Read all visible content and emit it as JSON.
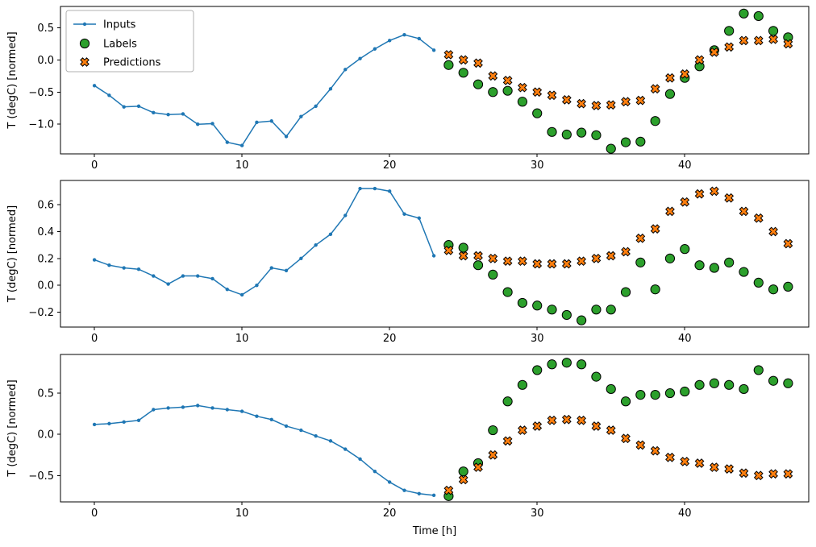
{
  "figure": {
    "background": "#ffffff",
    "xlabel": "Time [h]",
    "ylabel": "T (degC) [normed]"
  },
  "colors": {
    "inputs": "#1f77b4",
    "labels": "#2ca02c",
    "predictions": "#ff7f0e",
    "marker_edge": "#000000"
  },
  "legend": {
    "position": "upper-left",
    "items": [
      {
        "label": "Inputs",
        "type": "line-dot"
      },
      {
        "label": "Labels",
        "type": "circle"
      },
      {
        "label": "Predictions",
        "type": "x"
      }
    ]
  },
  "chart_data": [
    {
      "type": "line",
      "title": "",
      "ylabel": "T (degC) [normed]",
      "xlabel": "",
      "xlim": [
        -2.3,
        48.4
      ],
      "ylim": [
        -1.46,
        0.83
      ],
      "xticks": [
        0,
        10,
        20,
        30,
        40
      ],
      "yticks": [
        -1.0,
        -0.5,
        0.0,
        0.5
      ],
      "grid": false,
      "series": [
        {
          "name": "Inputs",
          "marker": "line-dot",
          "x": [
            0,
            1,
            2,
            3,
            4,
            5,
            6,
            7,
            8,
            9,
            10,
            11,
            12,
            13,
            14,
            15,
            16,
            17,
            18,
            19,
            20,
            21,
            22,
            23
          ],
          "y": [
            -0.4,
            -0.55,
            -0.73,
            -0.72,
            -0.82,
            -0.85,
            -0.84,
            -1.0,
            -0.99,
            -1.28,
            -1.33,
            -0.97,
            -0.95,
            -1.19,
            -0.88,
            -0.72,
            -0.45,
            -0.15,
            0.02,
            0.17,
            0.3,
            0.39,
            0.33,
            0.15
          ]
        },
        {
          "name": "Labels",
          "marker": "circle",
          "x": [
            24,
            25,
            26,
            27,
            28,
            29,
            30,
            31,
            32,
            33,
            34,
            35,
            36,
            37,
            38,
            39,
            40,
            41,
            42,
            43,
            44,
            45,
            46,
            47
          ],
          "y": [
            -0.08,
            -0.2,
            -0.38,
            -0.5,
            -0.48,
            -0.65,
            -0.83,
            -1.12,
            -1.16,
            -1.13,
            -1.17,
            -1.38,
            -1.28,
            -1.27,
            -0.95,
            -0.53,
            -0.28,
            -0.1,
            0.15,
            0.45,
            0.72,
            0.68,
            0.45,
            0.35
          ]
        },
        {
          "name": "Predictions",
          "marker": "x",
          "x": [
            24,
            25,
            26,
            27,
            28,
            29,
            30,
            31,
            32,
            33,
            34,
            35,
            36,
            37,
            38,
            39,
            40,
            41,
            42,
            43,
            44,
            45,
            46,
            47
          ],
          "y": [
            0.08,
            0.0,
            -0.05,
            -0.25,
            -0.32,
            -0.43,
            -0.5,
            -0.55,
            -0.62,
            -0.68,
            -0.71,
            -0.7,
            -0.65,
            -0.63,
            -0.45,
            -0.28,
            -0.22,
            0.0,
            0.12,
            0.2,
            0.3,
            0.3,
            0.32,
            0.25
          ]
        }
      ]
    },
    {
      "type": "line",
      "title": "",
      "ylabel": "T (degC) [normed]",
      "xlabel": "",
      "xlim": [
        -2.3,
        48.4
      ],
      "ylim": [
        -0.31,
        0.78
      ],
      "xticks": [
        0,
        10,
        20,
        30,
        40
      ],
      "yticks": [
        -0.2,
        0.0,
        0.2,
        0.4,
        0.6
      ],
      "grid": false,
      "series": [
        {
          "name": "Inputs",
          "marker": "line-dot",
          "x": [
            0,
            1,
            2,
            3,
            4,
            5,
            6,
            7,
            8,
            9,
            10,
            11,
            12,
            13,
            14,
            15,
            16,
            17,
            18,
            19,
            20,
            21,
            22,
            23
          ],
          "y": [
            0.19,
            0.15,
            0.13,
            0.12,
            0.07,
            0.01,
            0.07,
            0.07,
            0.05,
            -0.03,
            -0.07,
            0.0,
            0.13,
            0.11,
            0.2,
            0.3,
            0.38,
            0.52,
            0.72,
            0.72,
            0.7,
            0.53,
            0.5,
            0.22
          ]
        },
        {
          "name": "Labels",
          "marker": "circle",
          "x": [
            24,
            25,
            26,
            27,
            28,
            29,
            30,
            31,
            32,
            33,
            34,
            35,
            36,
            37,
            38,
            39,
            40,
            41,
            42,
            43,
            44,
            45,
            46,
            47
          ],
          "y": [
            0.3,
            0.28,
            0.15,
            0.08,
            -0.05,
            -0.13,
            -0.15,
            -0.18,
            -0.22,
            -0.26,
            -0.18,
            -0.18,
            -0.05,
            0.17,
            -0.03,
            0.2,
            0.27,
            0.15,
            0.13,
            0.17,
            0.1,
            0.02,
            -0.03,
            -0.01
          ]
        },
        {
          "name": "Predictions",
          "marker": "x",
          "x": [
            24,
            25,
            26,
            27,
            28,
            29,
            30,
            31,
            32,
            33,
            34,
            35,
            36,
            37,
            38,
            39,
            40,
            41,
            42,
            43,
            44,
            45,
            46,
            47
          ],
          "y": [
            0.26,
            0.22,
            0.22,
            0.2,
            0.18,
            0.18,
            0.16,
            0.16,
            0.16,
            0.18,
            0.2,
            0.22,
            0.25,
            0.35,
            0.42,
            0.55,
            0.62,
            0.68,
            0.7,
            0.65,
            0.55,
            0.5,
            0.4,
            0.31
          ]
        }
      ]
    },
    {
      "type": "line",
      "title": "",
      "ylabel": "T (degC) [normed]",
      "xlabel": "Time [h]",
      "xlim": [
        -2.3,
        48.4
      ],
      "ylim": [
        -0.82,
        0.97
      ],
      "xticks": [
        0,
        10,
        20,
        30,
        40
      ],
      "yticks": [
        -0.5,
        0.0,
        0.5
      ],
      "grid": false,
      "series": [
        {
          "name": "Inputs",
          "marker": "line-dot",
          "x": [
            0,
            1,
            2,
            3,
            4,
            5,
            6,
            7,
            8,
            9,
            10,
            11,
            12,
            13,
            14,
            15,
            16,
            17,
            18,
            19,
            20,
            21,
            22,
            23
          ],
          "y": [
            0.12,
            0.13,
            0.15,
            0.17,
            0.3,
            0.32,
            0.33,
            0.35,
            0.32,
            0.3,
            0.28,
            0.22,
            0.18,
            0.1,
            0.05,
            -0.02,
            -0.08,
            -0.18,
            -0.3,
            -0.45,
            -0.58,
            -0.68,
            -0.72,
            -0.74
          ]
        },
        {
          "name": "Labels",
          "marker": "circle",
          "x": [
            24,
            25,
            26,
            27,
            28,
            29,
            30,
            31,
            32,
            33,
            34,
            35,
            36,
            37,
            38,
            39,
            40,
            41,
            42,
            43,
            44,
            45,
            46,
            47
          ],
          "y": [
            -0.75,
            -0.45,
            -0.35,
            0.05,
            0.4,
            0.6,
            0.78,
            0.85,
            0.87,
            0.85,
            0.7,
            0.55,
            0.4,
            0.48,
            0.48,
            0.5,
            0.52,
            0.6,
            0.62,
            0.6,
            0.55,
            0.78,
            0.65,
            0.62
          ]
        },
        {
          "name": "Predictions",
          "marker": "x",
          "x": [
            24,
            25,
            26,
            27,
            28,
            29,
            30,
            31,
            32,
            33,
            34,
            35,
            36,
            37,
            38,
            39,
            40,
            41,
            42,
            43,
            44,
            45,
            46,
            47
          ],
          "y": [
            -0.68,
            -0.55,
            -0.4,
            -0.25,
            -0.08,
            0.05,
            0.1,
            0.17,
            0.18,
            0.17,
            0.1,
            0.05,
            -0.05,
            -0.13,
            -0.2,
            -0.28,
            -0.33,
            -0.35,
            -0.4,
            -0.42,
            -0.47,
            -0.5,
            -0.48,
            -0.48
          ]
        }
      ]
    }
  ]
}
